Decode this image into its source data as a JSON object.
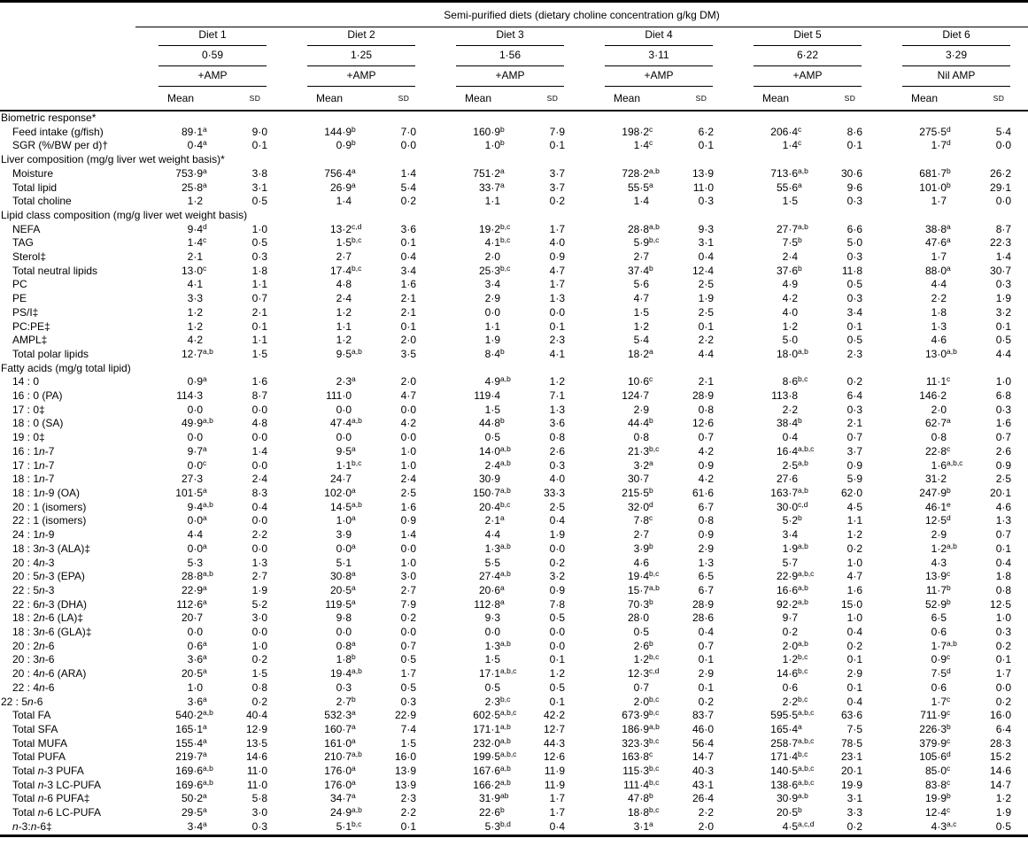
{
  "page": {
    "background": "#ffffff",
    "text_color": "#000000",
    "rule_color": "#000000"
  },
  "table_title": "Semi-purified diets (dietary choline concentration g/kg DM)",
  "column_headers": {
    "mean": "Mean",
    "sd": "SD"
  },
  "diets": [
    {
      "name": "Diet 1",
      "choline": "0·59",
      "amp": "+AMP"
    },
    {
      "name": "Diet 2",
      "choline": "1·25",
      "amp": "+AMP"
    },
    {
      "name": "Diet 3",
      "choline": "1·56",
      "amp": "+AMP"
    },
    {
      "name": "Diet 4",
      "choline": "3·11",
      "amp": "+AMP"
    },
    {
      "name": "Diet 5",
      "choline": "6·22",
      "amp": "+AMP"
    },
    {
      "name": "Diet 6",
      "choline": "3·29",
      "amp": "Nil AMP"
    }
  ],
  "rows": [
    {
      "section": "Biometric response*"
    },
    {
      "label": "Feed intake (g/fish)",
      "cells": [
        "89·1^a",
        "9·0",
        "144·9^b",
        "7·0",
        "160·9^b",
        "7·9",
        "198·2^c",
        "6·2",
        "206·4^c",
        "8·6",
        "275·5^d",
        "5·4"
      ]
    },
    {
      "label": "SGR (%/BW per d)†",
      "cells": [
        "0·4^a",
        "0·1",
        "0·9^b",
        "0·0",
        "1·0^b",
        "0·1",
        "1·4^c",
        "0·1",
        "1·4^c",
        "0·1",
        "1·7^d",
        "0·0"
      ]
    },
    {
      "section": "Liver composition (mg/g liver wet weight basis)*"
    },
    {
      "label": "Moisture",
      "cells": [
        "753·9^a",
        "3·8",
        "756·4^a",
        "1·4",
        "751·2^a",
        "3·7",
        "728·2^a,b",
        "13·9",
        "713·6^a,b",
        "30·6",
        "681·7^b",
        "26·2"
      ]
    },
    {
      "label": "Total lipid",
      "cells": [
        "25·8^a",
        "3·1",
        "26·9^a",
        "5·4",
        "33·7^a",
        "3·7",
        "55·5^a",
        "11·0",
        "55·6^a",
        "9·6",
        "101·0^b",
        "29·1"
      ]
    },
    {
      "label": "Total choline",
      "cells": [
        "1·2",
        "0·5",
        "1·4",
        "0·2",
        "1·1",
        "0·2",
        "1·4",
        "0·3",
        "1·5",
        "0·3",
        "1·7",
        "0·0"
      ]
    },
    {
      "section": "Lipid class composition (mg/g liver wet weight basis)"
    },
    {
      "label": "NEFA",
      "cells": [
        "9·4^d",
        "1·0",
        "13·2^c,d",
        "3·6",
        "19·2^b,c",
        "1·7",
        "28·8^a,b",
        "9·3",
        "27·7^a,b",
        "6·6",
        "38·8^a",
        "8·7"
      ]
    },
    {
      "label": "TAG",
      "cells": [
        "1·4^c",
        "0·5",
        "1·5^b,c",
        "0·1",
        "4·1^b,c",
        "4·0",
        "5·9^b,c",
        "3·1",
        "7·5^b",
        "5·0",
        "47·6^a",
        "22·3"
      ]
    },
    {
      "label": "Sterol‡",
      "cells": [
        "2·1",
        "0·3",
        "2·7",
        "0·4",
        "2·0",
        "0·9",
        "2·7",
        "0·4",
        "2·4",
        "0·3",
        "1·7",
        "1·4"
      ]
    },
    {
      "label": "Total neutral lipids",
      "cells": [
        "13·0^c",
        "1·8",
        "17·4^b,c",
        "3·4",
        "25·3^b,c",
        "4·7",
        "37·4^b",
        "12·4",
        "37·6^b",
        "11·8",
        "88·0^a",
        "30·7"
      ]
    },
    {
      "label": "PC",
      "cells": [
        "4·1",
        "1·1",
        "4·8",
        "1·6",
        "3·4",
        "1·7",
        "5·6",
        "2·5",
        "4·9",
        "0·5",
        "4·4",
        "0·3"
      ]
    },
    {
      "label": "PE",
      "cells": [
        "3·3",
        "0·7",
        "2·4",
        "2·1",
        "2·9",
        "1·3",
        "4·7",
        "1·9",
        "4·2",
        "0·3",
        "2·2",
        "1·9"
      ]
    },
    {
      "label": "PS/I‡",
      "cells": [
        "1·2",
        "2·1",
        "1·2",
        "2·1",
        "0·0",
        "0·0",
        "1·5",
        "2·5",
        "4·0",
        "3·4",
        "1·8",
        "3·2"
      ]
    },
    {
      "label": "PC:PE‡",
      "cells": [
        "1·2",
        "0·1",
        "1·1",
        "0·1",
        "1·1",
        "0·1",
        "1·2",
        "0·1",
        "1·2",
        "0·1",
        "1·3",
        "0·1"
      ]
    },
    {
      "label": "AMPL‡",
      "cells": [
        "4·2",
        "1·1",
        "1·2",
        "2·0",
        "1·9",
        "2·3",
        "5·4",
        "2·2",
        "5·0",
        "0·5",
        "4·6",
        "0·5"
      ]
    },
    {
      "label": "Total polar lipids",
      "cells": [
        "12·7^a,b",
        "1·5",
        "9·5^a,b",
        "3·5",
        "8·4^b",
        "4·1",
        "18·2^a",
        "4·4",
        "18·0^a,b",
        "2·3",
        "13·0^a,b",
        "4·4"
      ]
    },
    {
      "section": "Fatty acids (mg/g total lipid)"
    },
    {
      "label": "14 : 0",
      "cells": [
        "0·9^a",
        "1·6",
        "2·3^a",
        "2·0",
        "4·9^a,b",
        "1·2",
        "10·6^c",
        "2·1",
        "8·6^b,c",
        "0·2",
        "11·1^c",
        "1·0"
      ]
    },
    {
      "label": "16 : 0 (PA)",
      "cells": [
        "114·3",
        "8·7",
        "111·0",
        "4·7",
        "119·4",
        "7·1",
        "124·7",
        "28·9",
        "113·8",
        "6·4",
        "146·2",
        "6·8"
      ]
    },
    {
      "label": "17 : 0‡",
      "cells": [
        "0·0",
        "0·0",
        "0·0",
        "0·0",
        "1·5",
        "1·3",
        "2·9",
        "0·8",
        "2·2",
        "0·3",
        "2·0",
        "0·3"
      ]
    },
    {
      "label": "18 : 0 (SA)",
      "cells": [
        "49·9^a,b",
        "4·8",
        "47·4^a,b",
        "4·2",
        "44·8^b",
        "3·6",
        "44·4^b",
        "12·6",
        "38·4^b",
        "2·1",
        "62·7^a",
        "1·6"
      ]
    },
    {
      "label": "19 : 0‡",
      "cells": [
        "0·0",
        "0·0",
        "0·0",
        "0·0",
        "0·5",
        "0·8",
        "0·8",
        "0·7",
        "0·4",
        "0·7",
        "0·8",
        "0·7"
      ]
    },
    {
      "label": "16 : 1n-7",
      "cells": [
        "9·7^a",
        "1·4",
        "9·5^a",
        "1·0",
        "14·0^a,b",
        "2·6",
        "21·3^b,c",
        "4·2",
        "16·4^a,b,c",
        "3·7",
        "22·8^c",
        "2·6"
      ]
    },
    {
      "label": "17 : 1n-7",
      "cells": [
        "0·0^c",
        "0·0",
        "1·1^b,c",
        "1·0",
        "2·4^a,b",
        "0·3",
        "3·2^a",
        "0·9",
        "2·5^a,b",
        "0·9",
        "1·6^a,b,c",
        "0·9"
      ]
    },
    {
      "label": "18 : 1n-7",
      "cells": [
        "27·3",
        "2·4",
        "24·7",
        "2·4",
        "30·9",
        "4·0",
        "30·7",
        "4·2",
        "27·6",
        "5·9",
        "31·2",
        "2·5"
      ]
    },
    {
      "label": "18 : 1n-9 (OA)",
      "cells": [
        "101·5^a",
        "8·3",
        "102·0^a",
        "2·5",
        "150·7^a,b",
        "33·3",
        "215·5^b",
        "61·6",
        "163·7^a,b",
        "62·0",
        "247·9^b",
        "20·1"
      ]
    },
    {
      "label": "20 : 1 (isomers)",
      "cells": [
        "9·4^a,b",
        "0·4",
        "14·5^a,b",
        "1·6",
        "20·4^b,c",
        "2·5",
        "32·0^d",
        "6·7",
        "30·0^c,d",
        "4·5",
        "46·1^e",
        "4·6"
      ]
    },
    {
      "label": "22 : 1 (isomers)",
      "cells": [
        "0·0^a",
        "0·0",
        "1·0^a",
        "0·9",
        "2·1^a",
        "0·4",
        "7·8^c",
        "0·8",
        "5·2^b",
        "1·1",
        "12·5^d",
        "1·3"
      ]
    },
    {
      "label": "24 : 1n-9",
      "cells": [
        "4·4",
        "2·2",
        "3·9",
        "1·4",
        "4·4",
        "1·9",
        "2·7",
        "0·9",
        "3·4",
        "1·2",
        "2·9",
        "0·7"
      ]
    },
    {
      "label": "18 : 3n-3 (ALA)‡",
      "cells": [
        "0·0^a",
        "0·0",
        "0·0^a",
        "0·0",
        "1·3^a,b",
        "0·0",
        "3·9^b",
        "2·9",
        "1·9^a,b",
        "0·2",
        "1·2^a,b",
        "0·1"
      ]
    },
    {
      "label": "20 : 4n-3",
      "cells": [
        "5·3",
        "1·3",
        "5·1",
        "1·0",
        "5·5",
        "0·2",
        "4·6",
        "1·3",
        "5·7",
        "1·0",
        "4·3",
        "0·4"
      ]
    },
    {
      "label": "20 : 5n-3 (EPA)",
      "cells": [
        "28·8^a,b",
        "2·7",
        "30·8^a",
        "3·0",
        "27·4^a,b",
        "3·2",
        "19·4^b,c",
        "6·5",
        "22·9^a,b,c",
        "4·7",
        "13·9^c",
        "1·8"
      ]
    },
    {
      "label": "22 : 5n-3",
      "cells": [
        "22·9^a",
        "1·9",
        "20·5^a",
        "2·7",
        "20·6^a",
        "0·9",
        "15·7^a,b",
        "6·7",
        "16·6^a,b",
        "1·6",
        "11·7^b",
        "0·8"
      ]
    },
    {
      "label": "22 : 6n-3 (DHA)",
      "cells": [
        "112·6^a",
        "5·2",
        "119·5^a",
        "7·9",
        "112·8^a",
        "7·8",
        "70·3^b",
        "28·9",
        "92·2^a,b",
        "15·0",
        "52·9^b",
        "12·5"
      ]
    },
    {
      "label": "18 : 2n-6 (LA)‡",
      "cells": [
        "20·7",
        "3·0",
        "9·8",
        "0·2",
        "9·3",
        "0·5",
        "28·0",
        "28·6",
        "9·7",
        "1·0",
        "6·5",
        "1·0"
      ]
    },
    {
      "label": "18 : 3n-6 (GLA)‡",
      "cells": [
        "0·0",
        "0·0",
        "0·0",
        "0·0",
        "0·0",
        "0·0",
        "0·5",
        "0·4",
        "0·2",
        "0·4",
        "0·6",
        "0·3"
      ]
    },
    {
      "label": "20 : 2n-6",
      "cells": [
        "0·6^a",
        "1·0",
        "0·8^a",
        "0·7",
        "1·3^a,b",
        "0·0",
        "2·6^b",
        "0·7",
        "2·0^a,b",
        "0·2",
        "1·7^a,b",
        "0·2"
      ]
    },
    {
      "label": "20 : 3n-6",
      "cells": [
        "3·6^a",
        "0·2",
        "1·8^b",
        "0·5",
        "1·5",
        "0·1",
        "1·2^b,c",
        "0·1",
        "1·2^b,c",
        "0·1",
        "0·9^c",
        "0·1"
      ]
    },
    {
      "label": "20 : 4n-6 (ARA)",
      "cells": [
        "20·5^a",
        "1·5",
        "19·4^a,b",
        "1·7",
        "17·1^a,b,c",
        "1·2",
        "12·3^c,d",
        "2·9",
        "14·6^b,c",
        "2·9",
        "7·5^d",
        "1·7"
      ]
    },
    {
      "label": "22 : 4n-6",
      "cells": [
        "1·0",
        "0·8",
        "0·3",
        "0·5",
        "0·5",
        "0·5",
        "0·7",
        "0·1",
        "0·6",
        "0·1",
        "0·6",
        "0·0"
      ]
    },
    {
      "label": "22 : 5n-6",
      "indent": false,
      "cells": [
        "3·6^a",
        "0·2",
        "2·7^b",
        "0·3",
        "2·3^b,c",
        "0·1",
        "2·0^b,c",
        "0·2",
        "2·2^b,c",
        "0·4",
        "1·7^c",
        "0·2"
      ]
    },
    {
      "label": "Total FA",
      "cells": [
        "540·2^a,b",
        "40·4",
        "532·3^a",
        "22·9",
        "602·5^a,b,c",
        "42·2",
        "673·9^b,c",
        "83·7",
        "595·5^a,b,c",
        "63·6",
        "711·9^c",
        "16·0"
      ]
    },
    {
      "label": "Total SFA",
      "cells": [
        "165·1^a",
        "12·9",
        "160·7^a",
        "7·4",
        "171·1^a,b",
        "12·7",
        "186·9^a,b",
        "46·0",
        "165·4^a",
        "7·5",
        "226·3^b",
        "6·4"
      ]
    },
    {
      "label": "Total MUFA",
      "cells": [
        "155·4^a",
        "13·5",
        "161·0^a",
        "1·5",
        "232·0^a,b",
        "44·3",
        "323·3^b,c",
        "56·4",
        "258·7^a,b,c",
        "78·5",
        "379·9^c",
        "28·3"
      ]
    },
    {
      "label": "Total PUFA",
      "cells": [
        "219·7^a",
        "14·6",
        "210·7^a,b",
        "16·0",
        "199·5^a,b,c",
        "12·6",
        "163·8^c",
        "14·7",
        "171·4^b,c",
        "23·1",
        "105·6^d",
        "15·2"
      ]
    },
    {
      "label": "Total n-3 PUFA",
      "cells": [
        "169·6^a,b",
        "11·0",
        "176·0^a",
        "13·9",
        "167·6^a,b",
        "11·9",
        "115·3^b,c",
        "40·3",
        "140·5^a,b,c",
        "20·1",
        "85·0^c",
        "14·6"
      ]
    },
    {
      "label": "Total n-3 LC-PUFA",
      "cells": [
        "169·6^a,b",
        "11·0",
        "176·0^a",
        "13·9",
        "166·2^a,b",
        "11·9",
        "111·4^b,c",
        "43·1",
        "138·6^a,b,c",
        "19·9",
        "83·8^c",
        "14·7"
      ]
    },
    {
      "label": "Total n-6 PUFA‡",
      "cells": [
        "50·2^a",
        "5·8",
        "34·7^a",
        "2·3",
        "31·9^ab",
        "1·7",
        "47·8^b",
        "26·4",
        "30·9^a,b",
        "3·1",
        "19·9^b",
        "1·2"
      ]
    },
    {
      "label": "Total n-6 LC-PUFA",
      "cells": [
        "29·5^a",
        "3·0",
        "24·9^a,b",
        "2·2",
        "22·6^b",
        "1·7",
        "18·8^b,c",
        "2·2",
        "20·5^b",
        "3·3",
        "12·4^c",
        "1·9"
      ]
    },
    {
      "label": "n-3:n-6‡",
      "cells": [
        "3·4^a",
        "0·3",
        "5·1^b,c",
        "0·1",
        "5·3^b,d",
        "0·4",
        "3·1^a",
        "2·0",
        "4·5^a,c,d",
        "0·2",
        "4·3^a,c",
        "0·5"
      ]
    }
  ]
}
